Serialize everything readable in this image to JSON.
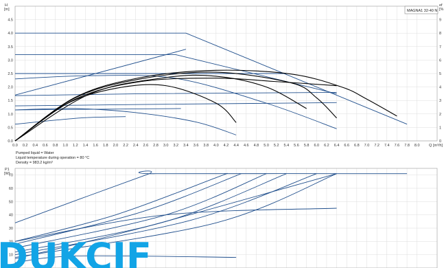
{
  "model_label": "MAGNA1 32-40 N",
  "notes": [
    "Pumped liquid = Water",
    "Liquid temperature during operation = 80 °C",
    "Density = 983.2 kg/m³"
  ],
  "watermark": "DUKCIF",
  "colors": {
    "blue": "#1f4e8c",
    "black": "#000000",
    "grid": "#dcdcdc",
    "watermark": "#12a4e6"
  },
  "chart_data": [
    {
      "type": "line",
      "title": "",
      "ylabel": "H",
      "yunit": "[m]",
      "ylabel_right": "ef",
      "yunit_right": "[%",
      "xlabel": "Q",
      "xunit": "[m³/h]",
      "xlim": [
        0,
        8.4
      ],
      "ylim": [
        0,
        5.0
      ],
      "ylim_right": [
        0,
        100
      ],
      "xticks": [
        "0.0",
        "0.2",
        "0.4",
        "0.6",
        "0.8",
        "1.0",
        "1.2",
        "1.4",
        "1.6",
        "1.8",
        "2.0",
        "2.2",
        "2.4",
        "2.6",
        "2.8",
        "3.0",
        "3.2",
        "3.4",
        "3.6",
        "3.8",
        "4.0",
        "4.2",
        "4.4",
        "4.6",
        "4.8",
        "5.0",
        "5.2",
        "5.4",
        "5.6",
        "5.8",
        "6.0",
        "6.2",
        "6.4",
        "6.6",
        "6.8",
        "7.0",
        "7.2",
        "7.4",
        "7.6",
        "7.8",
        "8.0"
      ],
      "yticks": [
        "0.0",
        "0.5",
        "1.0",
        "1.5",
        "2.0",
        "2.5",
        "3.0",
        "3.5",
        "4.0",
        "4.5"
      ],
      "yticks_right": [
        "0",
        "1",
        "2",
        "3",
        "4",
        "5",
        "6",
        "7",
        "8",
        "9"
      ],
      "grid": true,
      "series": [
        {
          "color": "blue",
          "x": [
            0,
            3.4,
            7.8
          ],
          "y": [
            4.0,
            4.0,
            0.62
          ]
        },
        {
          "color": "blue",
          "x": [
            0,
            3.2,
            6.4
          ],
          "y": [
            3.2,
            3.2,
            1.75
          ]
        },
        {
          "color": "blue",
          "x": [
            0,
            2.8,
            5.4
          ],
          "y": [
            2.5,
            2.5,
            2.5
          ]
        },
        {
          "color": "blue",
          "x": [
            0,
            2.5,
            6.4
          ],
          "y": [
            1.68,
            1.75,
            1.8
          ]
        },
        {
          "color": "blue",
          "x": [
            0,
            2.5,
            6.4
          ],
          "y": [
            1.3,
            1.35,
            1.42
          ]
        },
        {
          "color": "blue",
          "x": [
            0,
            3.3
          ],
          "y": [
            1.15,
            1.2
          ]
        },
        {
          "color": "blue",
          "x": [
            0,
            3.4
          ],
          "y": [
            1.7,
            3.4
          ]
        },
        {
          "color": "blue",
          "x": [
            0,
            1.5,
            3.2,
            5.0,
            6.4
          ],
          "y": [
            2.3,
            2.42,
            2.32,
            1.4,
            0.45
          ]
        },
        {
          "color": "blue",
          "x": [
            0,
            1.2,
            2.4,
            3.6,
            4.4
          ],
          "y": [
            1.15,
            1.2,
            1.05,
            0.7,
            0.22
          ]
        },
        {
          "color": "blue",
          "x": [
            0,
            1.3,
            2.2
          ],
          "y": [
            0.62,
            0.85,
            0.9
          ]
        },
        {
          "color": "black",
          "x": [
            0,
            1.2,
            2.5,
            4.0,
            5.5,
            6.5,
            7.0,
            7.6
          ],
          "y": [
            0,
            1.62,
            2.35,
            2.62,
            2.48,
            2.0,
            1.55,
            0.92
          ]
        },
        {
          "color": "black",
          "x": [
            0,
            1.2,
            2.5,
            4.0,
            5.2,
            6.4
          ],
          "y": [
            0,
            1.55,
            2.2,
            2.33,
            2.2,
            2.05
          ]
        },
        {
          "color": "black",
          "x": [
            0,
            1.2,
            2.5,
            4.0,
            5.5,
            6.0,
            6.4
          ],
          "y": [
            0,
            1.6,
            2.3,
            2.55,
            2.15,
            1.6,
            0.85
          ]
        },
        {
          "color": "black",
          "x": [
            0,
            1.0,
            2.0,
            3.0,
            4.0,
            4.4
          ],
          "y": [
            0,
            1.35,
            1.95,
            2.05,
            1.4,
            0.68
          ]
        },
        {
          "color": "black",
          "x": [
            0,
            1.5,
            3.0,
            4.0,
            5.0,
            5.8
          ],
          "y": [
            0,
            1.75,
            2.35,
            2.4,
            2.0,
            1.2
          ]
        }
      ]
    },
    {
      "type": "line",
      "title": "",
      "ylabel": "P1",
      "yunit": "[W]",
      "xlim": [
        0,
        8.4
      ],
      "ylim": [
        0,
        75
      ],
      "yticks": [
        "0",
        "10",
        "20",
        "30",
        "40",
        "50",
        "60",
        "70"
      ],
      "grid": true,
      "series": [
        {
          "color": "blue",
          "x": [
            0,
            2.6,
            2.8,
            7.8
          ],
          "y": [
            34,
            70,
            71,
            71
          ]
        },
        {
          "color": "blue",
          "x": [
            0,
            2.0,
            4.0,
            4.2
          ],
          "y": [
            20,
            40,
            68,
            71
          ]
        },
        {
          "color": "blue",
          "x": [
            0,
            2.5,
            4.5
          ],
          "y": [
            18,
            42,
            71
          ]
        },
        {
          "color": "blue",
          "x": [
            0,
            3.0,
            5.0
          ],
          "y": [
            15,
            40,
            71
          ]
        },
        {
          "color": "blue",
          "x": [
            0,
            3.0,
            5.4
          ],
          "y": [
            12,
            35,
            71
          ]
        },
        {
          "color": "blue",
          "x": [
            0,
            3.5,
            6.0
          ],
          "y": [
            10,
            36,
            71
          ]
        },
        {
          "color": "blue",
          "x": [
            0,
            4.0,
            6.4
          ],
          "y": [
            8,
            34,
            71
          ]
        },
        {
          "color": "blue",
          "x": [
            0,
            3.0,
            6.4
          ],
          "y": [
            20,
            40,
            45
          ]
        },
        {
          "color": "blue",
          "x": [
            0,
            1.2,
            4.4
          ],
          "y": [
            4,
            9,
            8
          ]
        },
        {
          "color": "blue",
          "x": [
            0,
            2.5,
            6.4
          ],
          "y": [
            7,
            30,
            71
          ]
        }
      ]
    }
  ]
}
